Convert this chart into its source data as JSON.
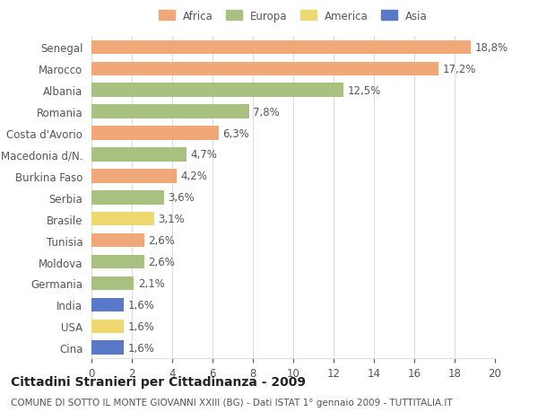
{
  "countries": [
    "Senegal",
    "Marocco",
    "Albania",
    "Romania",
    "Costa d'Avorio",
    "Macedonia d/N.",
    "Burkina Faso",
    "Serbia",
    "Brasile",
    "Tunisia",
    "Moldova",
    "Germania",
    "India",
    "USA",
    "Cina"
  ],
  "values": [
    18.8,
    17.2,
    12.5,
    7.8,
    6.3,
    4.7,
    4.2,
    3.6,
    3.1,
    2.6,
    2.6,
    2.1,
    1.6,
    1.6,
    1.6
  ],
  "labels": [
    "18,8%",
    "17,2%",
    "12,5%",
    "7,8%",
    "6,3%",
    "4,7%",
    "4,2%",
    "3,6%",
    "3,1%",
    "2,6%",
    "2,6%",
    "2,1%",
    "1,6%",
    "1,6%",
    "1,6%"
  ],
  "continents": [
    "Africa",
    "Africa",
    "Europa",
    "Europa",
    "Africa",
    "Europa",
    "Africa",
    "Europa",
    "America",
    "Africa",
    "Europa",
    "Europa",
    "Asia",
    "America",
    "Asia"
  ],
  "continent_colors": {
    "Africa": "#F0A878",
    "Europa": "#A8C080",
    "America": "#F0D870",
    "Asia": "#5878C8"
  },
  "legend_order": [
    "Africa",
    "Europa",
    "America",
    "Asia"
  ],
  "xlim": [
    0,
    20
  ],
  "xticks": [
    0,
    2,
    4,
    6,
    8,
    10,
    12,
    14,
    16,
    18,
    20
  ],
  "title": "Cittadini Stranieri per Cittadinanza - 2009",
  "subtitle": "COMUNE DI SOTTO IL MONTE GIOVANNI XXIII (BG) - Dati ISTAT 1° gennaio 2009 - TUTTITALIA.IT",
  "background_color": "#ffffff",
  "bar_height": 0.65,
  "grid_color": "#dddddd",
  "text_color": "#555555",
  "label_fontsize": 8.5,
  "tick_fontsize": 8.5,
  "title_fontsize": 10,
  "subtitle_fontsize": 7.5
}
